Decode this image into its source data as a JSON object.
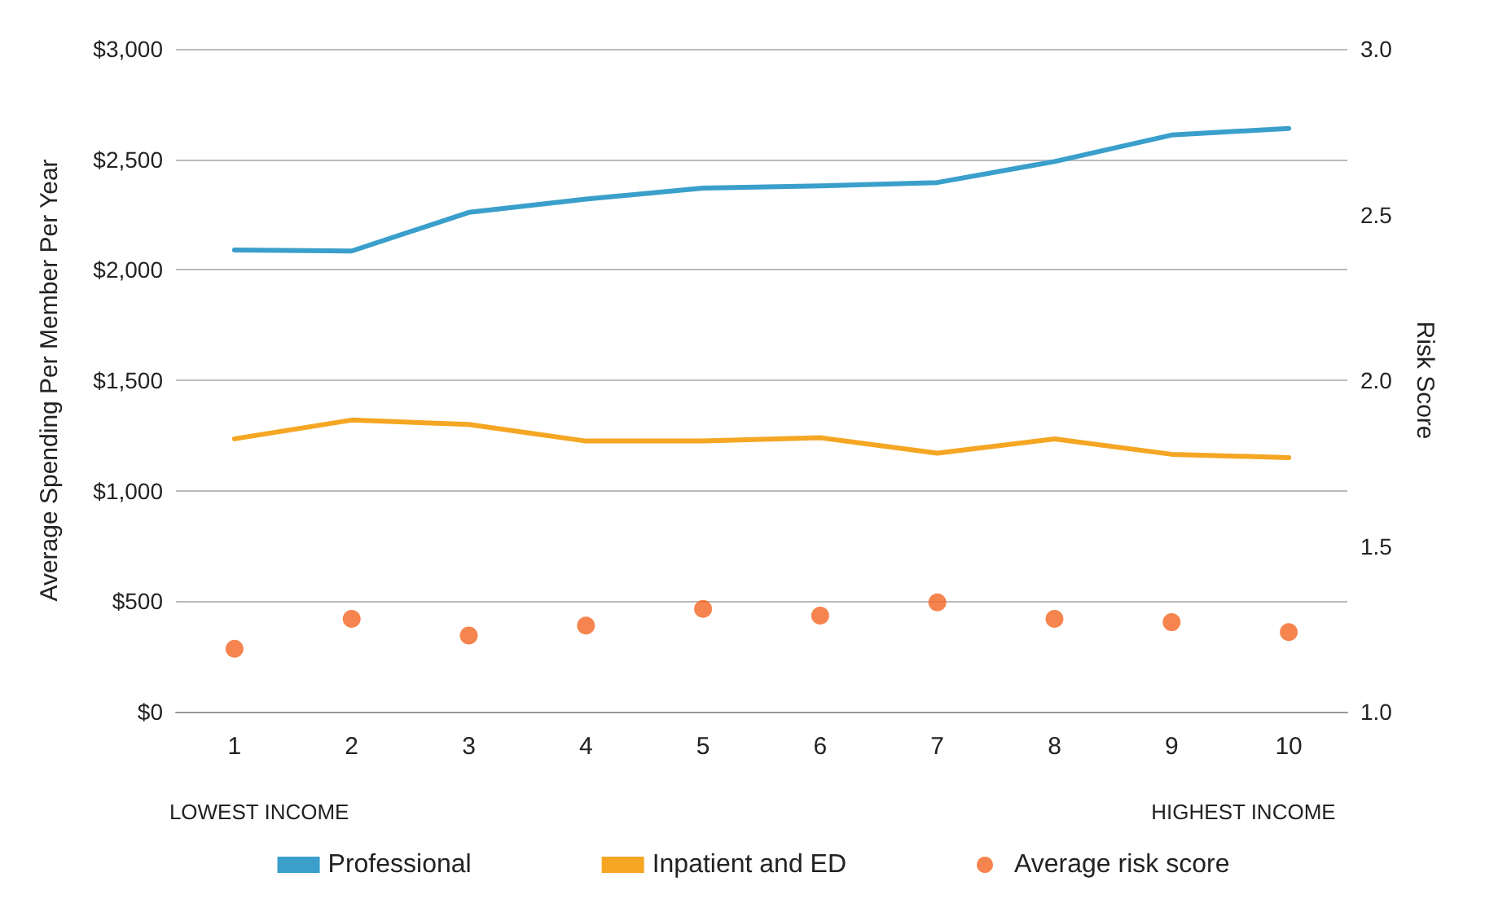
{
  "chart_data": {
    "type": "line",
    "ylabel": "Average Spending Per Member Per Year",
    "y2label": "Risk Score",
    "categories": [
      "1",
      "2",
      "3",
      "4",
      "5",
      "6",
      "7",
      "8",
      "9",
      "10"
    ],
    "series": [
      {
        "name": "Professional",
        "color": "#3a9fcb",
        "marker": "none",
        "values": [
          2090,
          2085,
          2260,
          2320,
          2370,
          2380,
          2395,
          2490,
          2610,
          2640
        ]
      },
      {
        "name": "Inpatient and ED",
        "color": "#f5a623",
        "marker": "none",
        "values": [
          1235,
          1320,
          1300,
          1225,
          1225,
          1240,
          1170,
          1235,
          1165,
          1150
        ]
      },
      {
        "name": "Average risk score",
        "type": "scatter",
        "axis": "y2",
        "color": "#f26522",
        "marker": "circle",
        "values": [
          1.19,
          1.28,
          1.23,
          1.26,
          1.31,
          1.29,
          1.33,
          1.28,
          1.27,
          1.24
        ]
      }
    ],
    "ylim": [
      0,
      3000
    ],
    "yticks": [
      {
        "value": 0,
        "label": "$0"
      },
      {
        "value": 500,
        "label": "$500"
      },
      {
        "value": 1000,
        "label": "$1,000"
      },
      {
        "value": 1500,
        "label": "$1,500"
      },
      {
        "value": 2000,
        "label": "$2,000"
      },
      {
        "value": 2500,
        "label": "$2,500"
      },
      {
        "value": 3000,
        "label": "$3,000"
      }
    ],
    "y2lim": [
      1,
      3
    ],
    "y2ticks": [
      {
        "value": 1,
        "label": "1.0"
      },
      {
        "value": 1.5,
        "label": "1.5"
      },
      {
        "value": 2,
        "label": "2.0"
      },
      {
        "value": 2.5,
        "label": "2.5"
      },
      {
        "value": 3,
        "label": "3.0"
      }
    ],
    "annotations": [
      "LOWEST INCOME",
      "HIGHEST INCOME"
    ],
    "grid": "y",
    "legend": "bottom",
    "line_style": "solid"
  }
}
